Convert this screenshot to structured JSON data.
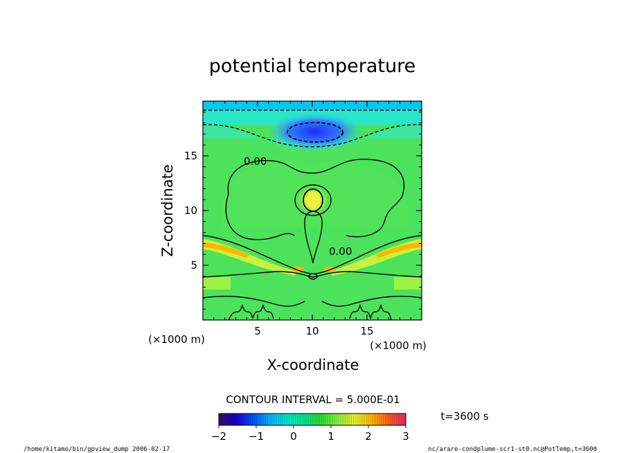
{
  "chart_data": {
    "type": "heatmap",
    "title": "potential temperature",
    "xlabel": "X-coordinate",
    "ylabel": "Z-coordinate",
    "x_unit_label": "(×1000 m)",
    "y_unit_label": "(×1000 m)",
    "xlim": [
      0,
      20
    ],
    "ylim": [
      0,
      20
    ],
    "x_ticks": [
      5,
      10,
      15
    ],
    "y_ticks": [
      5,
      10,
      15
    ],
    "contour_interval_text": "CONTOUR INTERVAL = 5.000E-01",
    "contour_labels": [
      "0.00",
      "0.00"
    ],
    "time_text": "t=3600 s",
    "colorbar": {
      "min": -2,
      "max": 3,
      "ticks": [
        -2,
        -1,
        0,
        1,
        2,
        3
      ],
      "tick_labels": [
        "−2",
        "−1",
        "0",
        "1",
        "2",
        "3"
      ],
      "colors": [
        "#3a0a6e",
        "#1a00c8",
        "#0050ff",
        "#00b4ff",
        "#00e6c8",
        "#00e68c",
        "#28dc32",
        "#8cf03c",
        "#e6f032",
        "#ffb400",
        "#ff5a1e",
        "#e6286e"
      ]
    }
  },
  "footer": {
    "left": "/home/kitamo/bin/gpview_dump  2006-02-17",
    "right": "nc/arare-condplume-scr1-st0.nc@PotTemp,t=3600"
  }
}
